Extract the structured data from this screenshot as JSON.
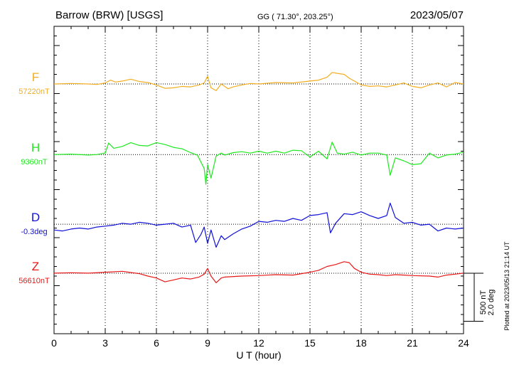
{
  "header": {
    "station": "Barrow (BRW)  [USGS]",
    "coords": "GG ( 71.30°, 203.25°)",
    "date": "2023/05/07"
  },
  "side_note": "Plotted at 2023/05/13 21:14 UT",
  "scale": {
    "line1": "500 nT",
    "line2": "2.0 deg"
  },
  "chart_data": {
    "type": "line",
    "xlabel": "U T (hour)",
    "xlim": [
      0,
      24
    ],
    "xticks": [
      "0",
      "3",
      "6",
      "9",
      "12",
      "15",
      "18",
      "21",
      "24"
    ],
    "ylim_nT": [
      0,
      3200
    ],
    "grid": true,
    "scale_bar": {
      "nT": 500,
      "deg": 2.0
    },
    "series": [
      {
        "name": "F",
        "baseline_label": "57220nT",
        "color": "#f2ae21",
        "baseline": 2600,
        "x": [
          0,
          1,
          2,
          2.5,
          3,
          3.3,
          3.6,
          4,
          4.5,
          5,
          5.5,
          6,
          6.5,
          7,
          7.5,
          8,
          8.5,
          8.8,
          9,
          9.2,
          9.5,
          9.8,
          10.2,
          10.5,
          11,
          11.5,
          12,
          13,
          14,
          15,
          15.5,
          16,
          16.3,
          16.6,
          17,
          17.3,
          17.6,
          18,
          18.5,
          19,
          19.5,
          20,
          20.5,
          21,
          21.5,
          22,
          22.5,
          23,
          23.5,
          24
        ],
        "y": [
          2600,
          2605,
          2600,
          2595,
          2610,
          2640,
          2620,
          2630,
          2650,
          2625,
          2615,
          2590,
          2555,
          2560,
          2575,
          2570,
          2590,
          2610,
          2680,
          2560,
          2530,
          2600,
          2550,
          2570,
          2590,
          2605,
          2600,
          2615,
          2610,
          2630,
          2640,
          2670,
          2720,
          2710,
          2700,
          2660,
          2630,
          2590,
          2575,
          2580,
          2570,
          2590,
          2610,
          2575,
          2560,
          2590,
          2610,
          2570,
          2615,
          2600
        ]
      },
      {
        "name": "H",
        "baseline_label": "9360nT",
        "color": "#1fe81f",
        "baseline": 1865,
        "x": [
          0,
          1,
          2,
          2.5,
          3,
          3.2,
          3.5,
          4,
          4.5,
          5,
          5.5,
          6,
          6.5,
          7,
          7.5,
          8,
          8.4,
          8.8,
          8.9,
          9,
          9.2,
          9.5,
          9.8,
          10,
          10.5,
          11,
          11.5,
          12,
          12.5,
          13,
          13.5,
          14,
          14.5,
          15,
          15.5,
          16,
          16.3,
          16.6,
          17,
          17.5,
          18,
          18.5,
          19,
          19.5,
          19.7,
          20,
          20.5,
          21,
          21.5,
          22,
          22.5,
          23,
          23.5,
          24
        ],
        "y": [
          1865,
          1870,
          1860,
          1865,
          1880,
          1985,
          1930,
          1950,
          1990,
          1960,
          1955,
          1990,
          1970,
          1940,
          1925,
          1885,
          1860,
          1720,
          1555,
          1760,
          1620,
          1850,
          1880,
          1860,
          1885,
          1895,
          1880,
          1900,
          1880,
          1900,
          1880,
          1910,
          1905,
          1840,
          1900,
          1820,
          1995,
          1880,
          1870,
          1890,
          1860,
          1880,
          1880,
          1860,
          1650,
          1830,
          1800,
          1760,
          1770,
          1880,
          1830,
          1860,
          1870,
          1890
        ]
      },
      {
        "name": "D",
        "baseline_label": "-0.3deg",
        "color": "#1010d8",
        "baseline": 1140,
        "x": [
          0,
          0.5,
          1,
          1.5,
          2,
          2.5,
          3,
          3.5,
          4,
          4.5,
          5,
          5.5,
          6,
          6.5,
          7,
          7.5,
          8,
          8.3,
          8.6,
          8.8,
          9,
          9.2,
          9.5,
          9.8,
          10,
          10.5,
          11,
          11.5,
          12,
          12.5,
          13,
          13.5,
          14,
          14.5,
          15,
          15.5,
          16,
          16.2,
          16.5,
          17,
          17.5,
          18,
          18.5,
          19,
          19.5,
          19.7,
          20,
          20.5,
          21,
          21.5,
          22,
          22.5,
          23,
          23.5,
          24
        ],
        "y": [
          1080,
          1070,
          1090,
          1100,
          1090,
          1110,
          1120,
          1130,
          1150,
          1140,
          1160,
          1150,
          1130,
          1140,
          1150,
          1110,
          1130,
          950,
          1030,
          1110,
          940,
          1080,
          900,
          1020,
          980,
          1040,
          1090,
          1120,
          1170,
          1160,
          1180,
          1170,
          1200,
          1180,
          1230,
          1240,
          1260,
          1050,
          1150,
          1250,
          1240,
          1270,
          1230,
          1200,
          1230,
          1360,
          1210,
          1150,
          1160,
          1130,
          1140,
          1070,
          1100,
          1090,
          1100
        ]
      },
      {
        "name": "Z",
        "baseline_label": "56610nT",
        "color": "#e81818",
        "baseline": 630,
        "x": [
          0,
          1,
          2,
          3,
          4,
          5,
          5.5,
          6,
          6.5,
          7,
          7.5,
          8,
          8.5,
          8.8,
          9,
          9.2,
          9.5,
          9.8,
          10,
          11,
          12,
          13,
          14,
          15,
          15.5,
          16,
          16.5,
          17,
          17.3,
          17.6,
          18,
          18.5,
          19,
          19.5,
          20,
          20.5,
          21,
          22,
          22.5,
          23,
          23.5,
          24
        ],
        "y": [
          630,
          635,
          630,
          640,
          650,
          625,
          600,
          580,
          540,
          560,
          580,
          570,
          590,
          620,
          680,
          600,
          530,
          580,
          590,
          600,
          605,
          615,
          610,
          640,
          660,
          700,
          720,
          750,
          740,
          680,
          640,
          620,
          615,
          605,
          615,
          610,
          605,
          600,
          590,
          610,
          620,
          630
        ]
      }
    ]
  }
}
